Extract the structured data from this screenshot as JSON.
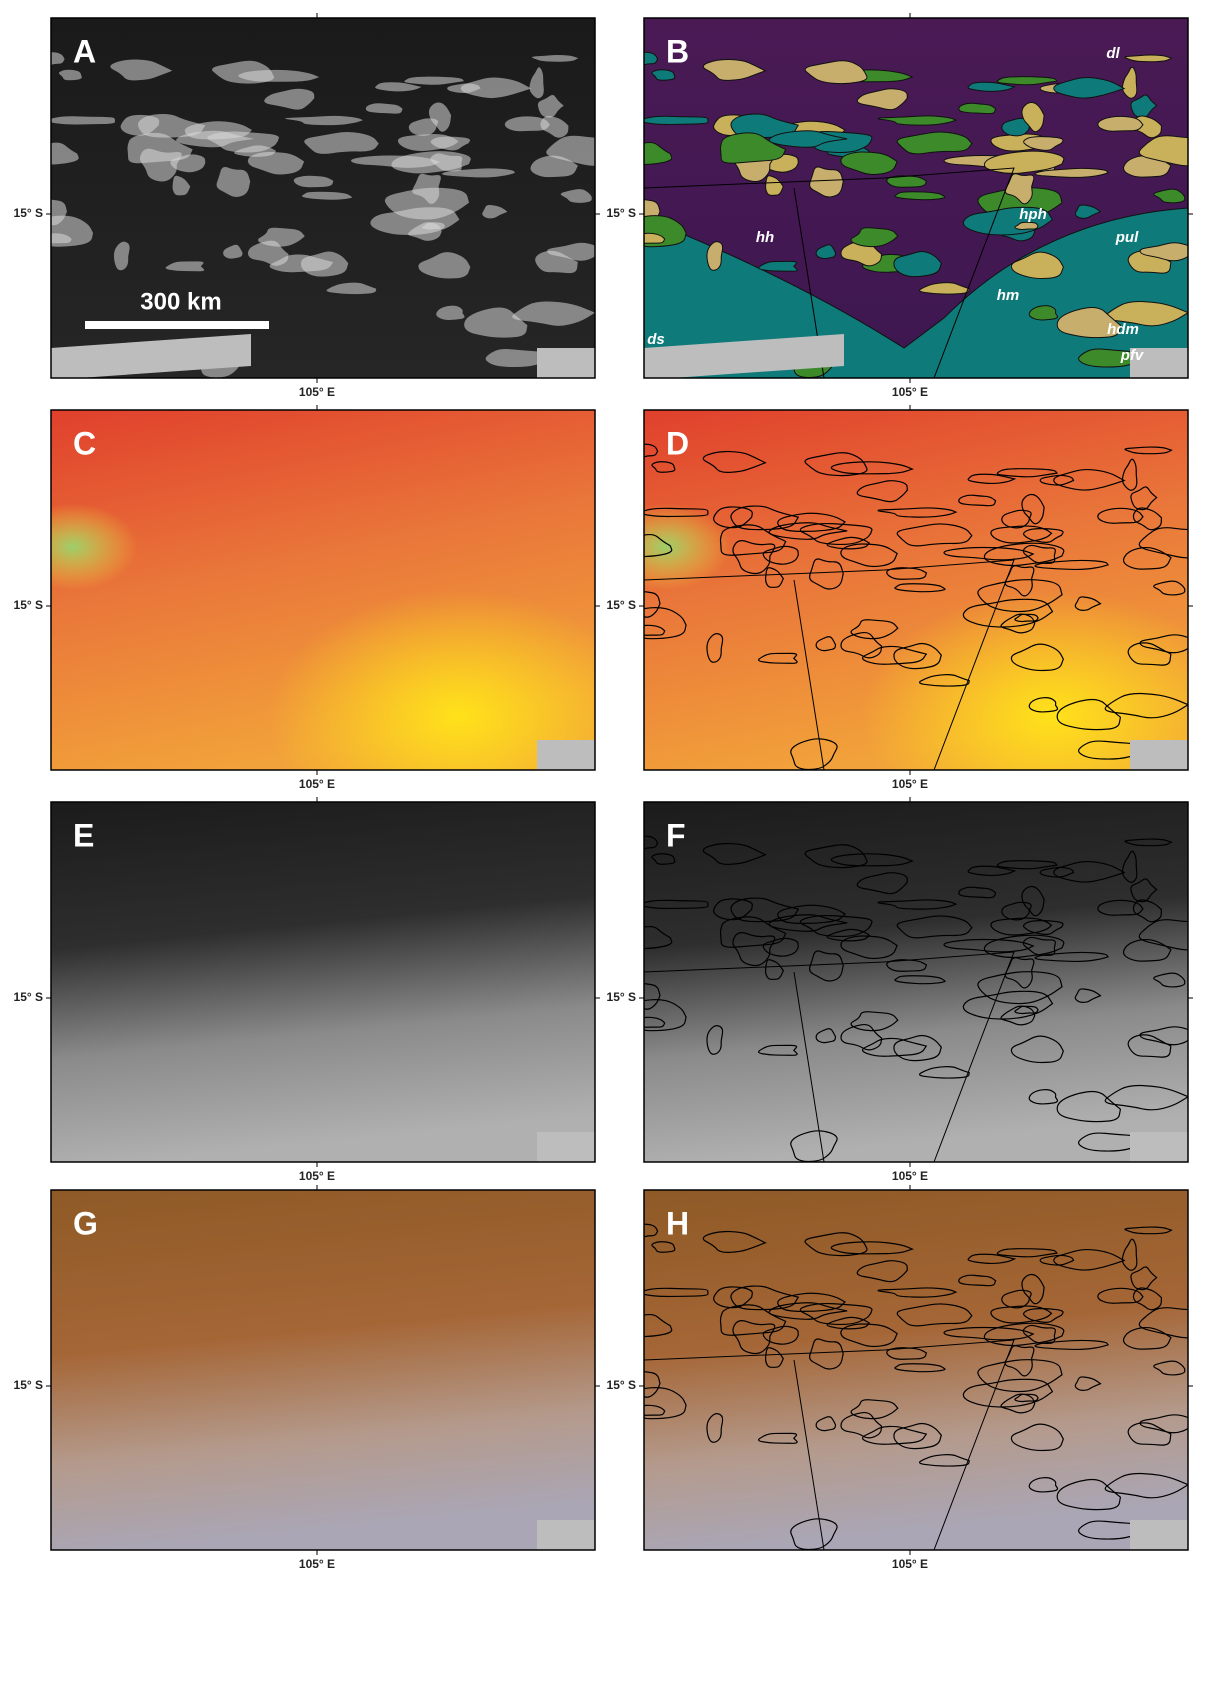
{
  "panels": [
    {
      "letter": "A"
    },
    {
      "letter": "B"
    },
    {
      "letter": "C"
    },
    {
      "letter": "D"
    },
    {
      "letter": "E"
    },
    {
      "letter": "F"
    },
    {
      "letter": "G"
    },
    {
      "letter": "H"
    }
  ],
  "axes": {
    "lat": "15° S",
    "lon": "105° E"
  },
  "scale_bar": "300 km",
  "units": [
    "dl",
    "hph",
    "hh",
    "pul",
    "hm",
    "ds",
    "hdm",
    "pfv"
  ]
}
